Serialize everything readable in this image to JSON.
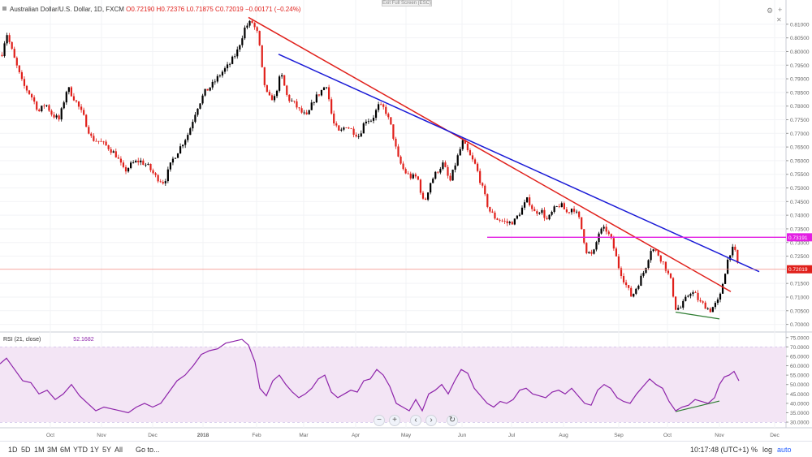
{
  "header": {
    "symbol": "Australian Dollar/U.S. Dollar, 1D, FXCM",
    "open": "O0.72190",
    "high": "H0.72376",
    "low": "L0.71875",
    "close": "C0.72019",
    "change": "−0.00171 (−0.24%)",
    "exit_fullscreen": "Exit Full Screen (ESC)"
  },
  "rsi_label": "RSI (21, close)",
  "rsi_value": "52.1682",
  "price_badges": {
    "resistance": "0.73191",
    "last": "0.72019"
  },
  "toolbar": {
    "ranges": [
      "1D",
      "5D",
      "1M",
      "3M",
      "6M",
      "YTD",
      "1Y",
      "5Y",
      "All"
    ],
    "goto": "Go to...",
    "time": "10:17:48 (UTC+1)",
    "pct": "%",
    "log": "log",
    "auto": "auto"
  },
  "colors": {
    "up": "#000000",
    "down": "#e0201b",
    "trend_red": "#e0201b",
    "trend_blue": "#1a1ad6",
    "magenta": "#e31ee3",
    "rsi_line": "#8e24aa",
    "rsi_band": "#f3e5f5",
    "divergence": "#2e7d32"
  },
  "chart_data": [
    {
      "type": "candlestick",
      "title": "Australian Dollar/U.S. Dollar, 1D, FXCM",
      "x_tick_labels": [
        "Oct",
        "Nov",
        "Dec",
        "2018",
        "Feb",
        "Mar",
        "Apr",
        "May",
        "Jun",
        "Jul",
        "Aug",
        "Sep",
        "Oct",
        "Nov",
        "Dec"
      ],
      "y_tick_labels": [
        "0.81000",
        "0.80500",
        "0.80000",
        "0.79500",
        "0.79000",
        "0.78500",
        "0.78000",
        "0.77500",
        "0.77000",
        "0.76500",
        "0.76000",
        "0.75500",
        "0.75000",
        "0.74500",
        "0.74000",
        "0.73500",
        "0.73000",
        "0.72500",
        "0.71500",
        "0.71000",
        "0.70500",
        "0.70000"
      ],
      "ylim": [
        0.6975,
        0.8165
      ],
      "close_path": [
        [
          0,
          0.796
        ],
        [
          8,
          0.807
        ],
        [
          18,
          0.797
        ],
        [
          28,
          0.788
        ],
        [
          38,
          0.784
        ],
        [
          48,
          0.778
        ],
        [
          56,
          0.781
        ],
        [
          64,
          0.777
        ],
        [
          73,
          0.775
        ],
        [
          83,
          0.787
        ],
        [
          93,
          0.782
        ],
        [
          103,
          0.776
        ],
        [
          113,
          0.768
        ],
        [
          123,
          0.767
        ],
        [
          133,
          0.765
        ],
        [
          143,
          0.762
        ],
        [
          153,
          0.756
        ],
        [
          163,
          0.759
        ],
        [
          172,
          0.76
        ],
        [
          182,
          0.758
        ],
        [
          192,
          0.754
        ],
        [
          202,
          0.752
        ],
        [
          212,
          0.76
        ],
        [
          222,
          0.765
        ],
        [
          232,
          0.77
        ],
        [
          242,
          0.779
        ],
        [
          252,
          0.785
        ],
        [
          262,
          0.788
        ],
        [
          272,
          0.792
        ],
        [
          282,
          0.795
        ],
        [
          292,
          0.8
        ],
        [
          302,
          0.809
        ],
        [
          310,
          0.811
        ],
        [
          318,
          0.806
        ],
        [
          324,
          0.79
        ],
        [
          330,
          0.783
        ],
        [
          338,
          0.783
        ],
        [
          346,
          0.792
        ],
        [
          354,
          0.783
        ],
        [
          362,
          0.781
        ],
        [
          370,
          0.778
        ],
        [
          378,
          0.776
        ],
        [
          386,
          0.782
        ],
        [
          394,
          0.785
        ],
        [
          402,
          0.788
        ],
        [
          410,
          0.774
        ],
        [
          418,
          0.77
        ],
        [
          426,
          0.773
        ],
        [
          434,
          0.771
        ],
        [
          442,
          0.769
        ],
        [
          450,
          0.775
        ],
        [
          458,
          0.775
        ],
        [
          466,
          0.78
        ],
        [
          474,
          0.779
        ],
        [
          482,
          0.772
        ],
        [
          490,
          0.761
        ],
        [
          498,
          0.756
        ],
        [
          506,
          0.754
        ],
        [
          514,
          0.754
        ],
        [
          522,
          0.744
        ],
        [
          530,
          0.752
        ],
        [
          538,
          0.756
        ],
        [
          546,
          0.759
        ],
        [
          554,
          0.752
        ],
        [
          562,
          0.76
        ],
        [
          570,
          0.767
        ],
        [
          578,
          0.762
        ],
        [
          586,
          0.758
        ],
        [
          594,
          0.75
        ],
        [
          602,
          0.742
        ],
        [
          610,
          0.739
        ],
        [
          618,
          0.738
        ],
        [
          626,
          0.737
        ],
        [
          634,
          0.738
        ],
        [
          642,
          0.742
        ],
        [
          650,
          0.746
        ],
        [
          658,
          0.741
        ],
        [
          666,
          0.742
        ],
        [
          674,
          0.738
        ],
        [
          682,
          0.742
        ],
        [
          690,
          0.744
        ],
        [
          698,
          0.741
        ],
        [
          706,
          0.743
        ],
        [
          714,
          0.738
        ],
        [
          722,
          0.727
        ],
        [
          730,
          0.725
        ],
        [
          738,
          0.734
        ],
        [
          746,
          0.735
        ],
        [
          754,
          0.73
        ],
        [
          762,
          0.721
        ],
        [
          770,
          0.715
        ],
        [
          778,
          0.71
        ],
        [
          786,
          0.715
        ],
        [
          794,
          0.72
        ],
        [
          802,
          0.728
        ],
        [
          810,
          0.726
        ],
        [
          818,
          0.722
        ],
        [
          826,
          0.716
        ],
        [
          832,
          0.706
        ],
        [
          838,
          0.706
        ],
        [
          844,
          0.709
        ],
        [
          850,
          0.712
        ],
        [
          856,
          0.711
        ],
        [
          862,
          0.708
        ],
        [
          868,
          0.707
        ],
        [
          874,
          0.705
        ],
        [
          880,
          0.707
        ],
        [
          886,
          0.709
        ],
        [
          892,
          0.718
        ],
        [
          898,
          0.726
        ],
        [
          904,
          0.728
        ],
        [
          910,
          0.7202
        ]
      ],
      "annotations": [
        {
          "name": "red-trendline",
          "points": [
            [
              306,
              0.8125
            ],
            [
              900,
              0.712
            ]
          ]
        },
        {
          "name": "blue-trendline",
          "points": [
            [
              343,
              0.799
            ],
            [
              935,
              0.7193
            ]
          ]
        },
        {
          "name": "magenta-resistance",
          "points": [
            [
              600,
              0.73191
            ],
            [
              968,
              0.73191
            ]
          ]
        },
        {
          "name": "green-divergence",
          "points": [
            [
              832,
              0.7045
            ],
            [
              886,
              0.702
            ]
          ]
        },
        {
          "name": "last-price-line",
          "points": [
            [
              0,
              0.72019
            ],
            [
              968,
              0.72019
            ]
          ]
        }
      ]
    },
    {
      "type": "line",
      "title": "RSI (21, close)",
      "y_tick_labels": [
        "75.0000",
        "70.0000",
        "65.0000",
        "60.0000",
        "55.0000",
        "50.0000",
        "45.0000",
        "40.0000",
        "35.0000",
        "30.0000"
      ],
      "ylim": [
        27.0,
        77.5
      ],
      "band": [
        30,
        70
      ],
      "series": [
        {
          "values": [
            [
              0,
              61
            ],
            [
              8,
              64
            ],
            [
              18,
              58
            ],
            [
              28,
              52
            ],
            [
              38,
              51
            ],
            [
              48,
              45
            ],
            [
              58,
              47
            ],
            [
              68,
              42
            ],
            [
              78,
              45
            ],
            [
              88,
              50
            ],
            [
              98,
              44
            ],
            [
              108,
              40
            ],
            [
              118,
              36
            ],
            [
              128,
              38
            ],
            [
              138,
              37
            ],
            [
              148,
              36
            ],
            [
              158,
              35
            ],
            [
              168,
              38
            ],
            [
              178,
              40
            ],
            [
              188,
              38
            ],
            [
              198,
              40
            ],
            [
              208,
              46
            ],
            [
              218,
              52
            ],
            [
              228,
              55
            ],
            [
              238,
              60
            ],
            [
              248,
              66
            ],
            [
              258,
              68
            ],
            [
              268,
              69
            ],
            [
              278,
              72
            ],
            [
              288,
              73
            ],
            [
              298,
              74
            ],
            [
              306,
              71
            ],
            [
              314,
              62
            ],
            [
              320,
              48
            ],
            [
              328,
              44
            ],
            [
              336,
              52
            ],
            [
              344,
              55
            ],
            [
              352,
              50
            ],
            [
              360,
              46
            ],
            [
              368,
              43
            ],
            [
              376,
              45
            ],
            [
              384,
              48
            ],
            [
              392,
              53
            ],
            [
              400,
              55
            ],
            [
              408,
              46
            ],
            [
              416,
              43
            ],
            [
              424,
              45
            ],
            [
              432,
              47
            ],
            [
              440,
              46
            ],
            [
              448,
              52
            ],
            [
              456,
              53
            ],
            [
              464,
              58
            ],
            [
              472,
              55
            ],
            [
              480,
              49
            ],
            [
              488,
              40
            ],
            [
              496,
              38
            ],
            [
              504,
              36
            ],
            [
              512,
              42
            ],
            [
              520,
              36
            ],
            [
              528,
              45
            ],
            [
              536,
              47
            ],
            [
              544,
              50
            ],
            [
              552,
              45
            ],
            [
              560,
              52
            ],
            [
              568,
              58
            ],
            [
              576,
              56
            ],
            [
              584,
              48
            ],
            [
              592,
              44
            ],
            [
              600,
              40
            ],
            [
              608,
              38
            ],
            [
              616,
              41
            ],
            [
              624,
              40
            ],
            [
              632,
              42
            ],
            [
              640,
              47
            ],
            [
              648,
              48
            ],
            [
              656,
              45
            ],
            [
              664,
              44
            ],
            [
              672,
              43
            ],
            [
              680,
              46
            ],
            [
              688,
              47
            ],
            [
              696,
              45
            ],
            [
              704,
              48
            ],
            [
              712,
              44
            ],
            [
              720,
              40
            ],
            [
              728,
              39
            ],
            [
              736,
              47
            ],
            [
              744,
              50
            ],
            [
              752,
              48
            ],
            [
              760,
              43
            ],
            [
              768,
              41
            ],
            [
              776,
              40
            ],
            [
              784,
              45
            ],
            [
              792,
              49
            ],
            [
              800,
              53
            ],
            [
              808,
              50
            ],
            [
              816,
              48
            ],
            [
              824,
              41
            ],
            [
              832,
              36
            ],
            [
              840,
              38
            ],
            [
              848,
              39
            ],
            [
              856,
              42
            ],
            [
              864,
              41
            ],
            [
              872,
              40
            ],
            [
              880,
              43
            ],
            [
              886,
              50
            ],
            [
              892,
              54
            ],
            [
              898,
              55
            ],
            [
              904,
              57
            ],
            [
              910,
              52
            ]
          ]
        }
      ],
      "annotations": [
        {
          "name": "green-rsi-divergence",
          "points": [
            [
              832,
              35.6
            ],
            [
              886,
              41.2
            ]
          ]
        }
      ]
    }
  ]
}
